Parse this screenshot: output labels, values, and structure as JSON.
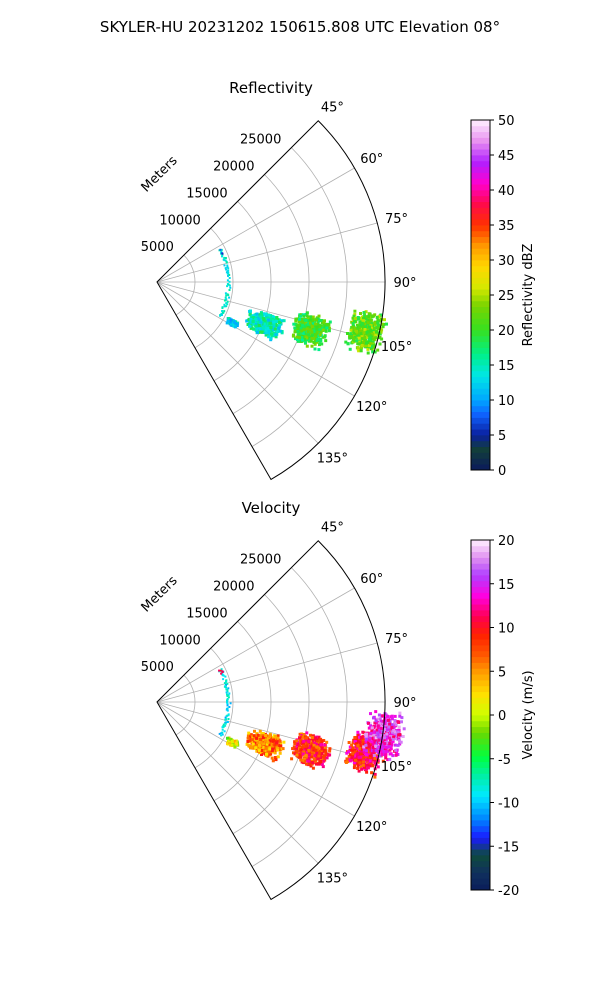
{
  "figure": {
    "suptitle": "SKYLER-HU  20231202  150615.808 UTC Elevation 08°"
  },
  "chart_data": [
    {
      "type": "heatmap",
      "projection": "polar-sector",
      "title": "Reflectivity",
      "range_label": "Meters",
      "range_ticks": [
        5000,
        10000,
        15000,
        20000,
        25000
      ],
      "range_lim": [
        0,
        30000
      ],
      "azimuth_ticks_deg": [
        45,
        60,
        75,
        90,
        105,
        120,
        135
      ],
      "azimuth_lim_deg": [
        45,
        150
      ],
      "grid": true,
      "colorbar": {
        "label": "Reflectivity dBZ",
        "min": 0,
        "max": 50,
        "ticks": [
          0,
          5,
          10,
          15,
          20,
          25,
          30,
          35,
          40,
          45,
          50
        ],
        "colormap": "pyart_HomeyerRainbow"
      },
      "echoes": [
        {
          "name": "near-range arc",
          "az_start": 62,
          "az_end": 118,
          "range_m": 9300,
          "value": 14,
          "note": "thin clutter arc"
        },
        {
          "name": "near-range top",
          "az_start": 62,
          "az_end": 66,
          "range_m": 9300,
          "value": 8
        },
        {
          "name": "cell A",
          "az_center": 111,
          "range_m": 15000,
          "value": 15
        },
        {
          "name": "cell B",
          "az_center": 107,
          "range_m": 21000,
          "value": 20
        },
        {
          "name": "cell C",
          "az_center": 103,
          "range_m": 28000,
          "value": 22
        },
        {
          "name": "small blob",
          "az_center": 118,
          "range_m": 11000,
          "value": 13
        }
      ]
    },
    {
      "type": "heatmap",
      "projection": "polar-sector",
      "title": "Velocity",
      "range_label": "Meters",
      "range_ticks": [
        5000,
        10000,
        15000,
        20000,
        25000
      ],
      "range_lim": [
        0,
        30000
      ],
      "azimuth_ticks_deg": [
        45,
        60,
        75,
        90,
        105,
        120,
        135
      ],
      "azimuth_lim_deg": [
        45,
        150
      ],
      "grid": true,
      "colorbar": {
        "label": "Velocity (m/s)",
        "min": -20,
        "max": 20,
        "ticks": [
          -20,
          -15,
          -10,
          -5,
          0,
          5,
          10,
          15,
          20
        ],
        "colormap": "pyart_BuDRd18"
      },
      "echoes": [
        {
          "name": "near-range arc",
          "az_start": 62,
          "az_end": 118,
          "range_m": 9300,
          "value": -9
        },
        {
          "name": "near-range top",
          "az_start": 62,
          "az_end": 66,
          "range_m": 9300,
          "value": 11
        },
        {
          "name": "cell A",
          "az_center": 111,
          "range_m": 15000,
          "value": 6
        },
        {
          "name": "cell B",
          "az_center": 107,
          "range_m": 21000,
          "value": 9
        },
        {
          "name": "cell C",
          "az_center": 103,
          "range_m": 28000,
          "value": 10
        },
        {
          "name": "cell C tail",
          "az_center": 98,
          "range_m": 30000,
          "value": 15
        },
        {
          "name": "small blob",
          "az_center": 118,
          "range_m": 11000,
          "value": 1
        }
      ]
    }
  ]
}
